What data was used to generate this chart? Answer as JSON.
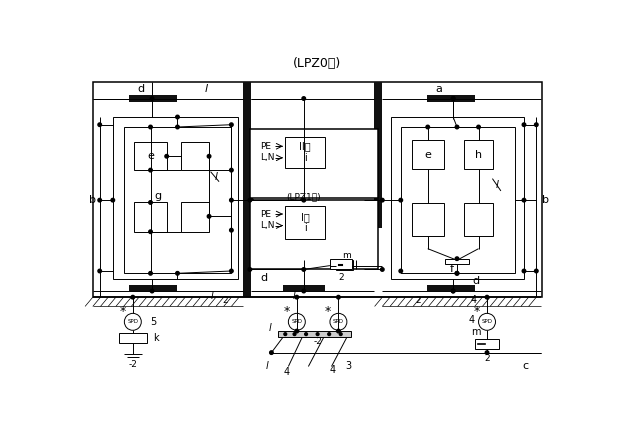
{
  "title": "(LPZ0区)",
  "lpz1_label": "(LPZ1区)",
  "class2_label": "II类\ni",
  "class1_label": "I类\ni",
  "background": "#ffffff",
  "fig_width": 6.19,
  "fig_height": 4.36,
  "dpi": 100,
  "lw_thin": 0.7,
  "lw_med": 1.1,
  "bar_color": "#111111"
}
